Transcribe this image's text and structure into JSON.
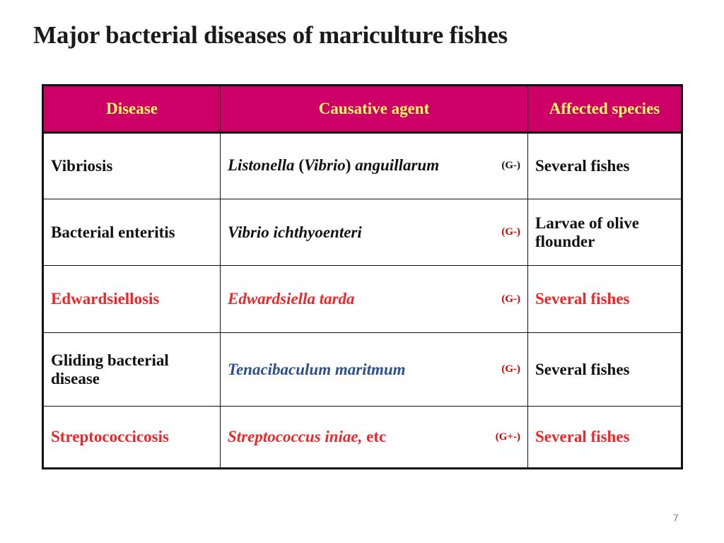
{
  "title": "Major bacterial diseases of mariculture fishes",
  "table": {
    "headers": [
      "Disease",
      "Causative agent",
      "Affected species"
    ],
    "rows": [
      {
        "disease": "Vibriosis",
        "agent_parts": [
          "Listonella",
          " (",
          "Vibrio",
          ") ",
          "anguillarum"
        ],
        "gram": "(G-)",
        "species": "Several fishes"
      },
      {
        "disease": "Bacterial enteritis",
        "agent": "Vibrio ichthyoenteri",
        "gram": "(G-)",
        "species": "Larvae of olive flounder"
      },
      {
        "disease": "Edwardsiellosis",
        "agent": "Edwardsiella tarda",
        "gram": "(G-)",
        "species": "Several fishes"
      },
      {
        "disease": "Gliding bacterial disease",
        "agent": "Tenacibaculum maritmum",
        "gram": "(G-)",
        "species": "Several fishes"
      },
      {
        "disease": "Streptococcicosis",
        "agent": "Streptococcus iniae,",
        "agent_suffix": " etc",
        "gram": "(G+-)",
        "species": "Several fishes"
      }
    ]
  },
  "page_number": "7",
  "colors": {
    "header_bg": "#cc0066",
    "header_text": "#ffff66",
    "highlight_red": "#e8282a",
    "agent_blue": "#2b4f8a",
    "gram_red": "#cc0000"
  }
}
